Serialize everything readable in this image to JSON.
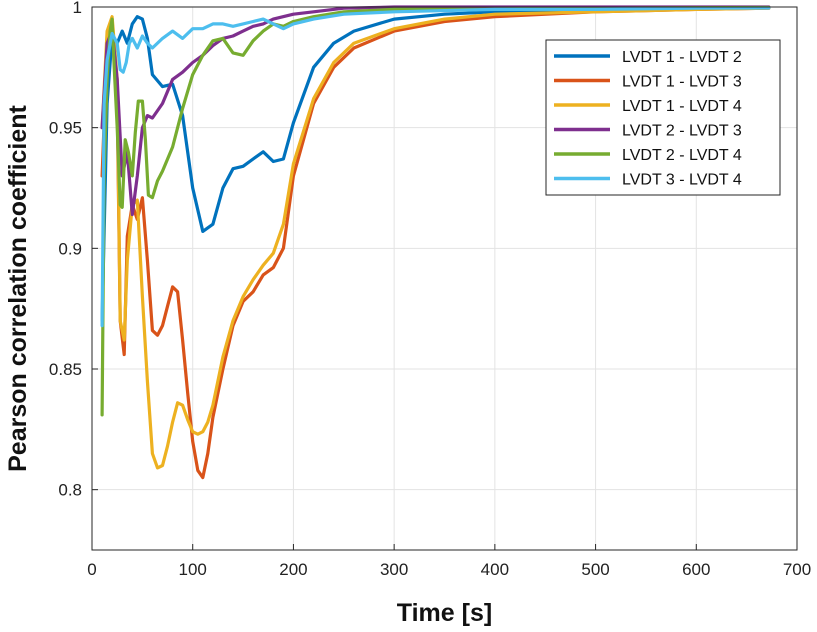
{
  "chart_data": {
    "type": "line",
    "xlabel": "Time [s]",
    "ylabel": "Pearson correlation coefficient",
    "xlim": [
      0,
      700
    ],
    "ylim": [
      0.775,
      1.0
    ],
    "xticks": [
      0,
      100,
      200,
      300,
      400,
      500,
      600,
      700
    ],
    "yticks": [
      0.8,
      0.85,
      0.9,
      0.95,
      1
    ],
    "ytick_labels": [
      "0.8",
      "0.85",
      "0.9",
      "0.95",
      "1"
    ],
    "grid": true,
    "legend_position": "top-right",
    "series": [
      {
        "name": "LVDT 1 - LVDT 2",
        "color": "#0072BD",
        "x": [
          10,
          15,
          20,
          25,
          30,
          35,
          40,
          45,
          50,
          55,
          60,
          70,
          80,
          90,
          100,
          110,
          120,
          130,
          140,
          150,
          160,
          170,
          180,
          190,
          200,
          220,
          240,
          260,
          300,
          350,
          400,
          500,
          600,
          672
        ],
        "y": [
          0.87,
          0.96,
          0.988,
          0.985,
          0.99,
          0.985,
          0.993,
          0.996,
          0.995,
          0.987,
          0.972,
          0.967,
          0.968,
          0.955,
          0.925,
          0.907,
          0.91,
          0.925,
          0.933,
          0.934,
          0.937,
          0.94,
          0.936,
          0.937,
          0.952,
          0.975,
          0.985,
          0.99,
          0.995,
          0.997,
          0.998,
          0.999,
          0.9995,
          0.9997
        ]
      },
      {
        "name": "LVDT 1 - LVDT 3",
        "color": "#D95319",
        "x": [
          10,
          15,
          20,
          25,
          28,
          32,
          35,
          40,
          45,
          50,
          55,
          60,
          65,
          70,
          75,
          80,
          85,
          90,
          95,
          100,
          105,
          110,
          115,
          120,
          130,
          140,
          150,
          160,
          170,
          180,
          190,
          200,
          220,
          240,
          260,
          300,
          350,
          400,
          500,
          600,
          672
        ],
        "y": [
          0.93,
          0.985,
          0.995,
          0.96,
          0.87,
          0.856,
          0.905,
          0.918,
          0.912,
          0.921,
          0.895,
          0.866,
          0.864,
          0.868,
          0.876,
          0.884,
          0.882,
          0.862,
          0.84,
          0.82,
          0.808,
          0.805,
          0.815,
          0.83,
          0.85,
          0.868,
          0.878,
          0.882,
          0.889,
          0.892,
          0.9,
          0.93,
          0.96,
          0.975,
          0.983,
          0.99,
          0.994,
          0.996,
          0.998,
          0.999,
          0.9995
        ]
      },
      {
        "name": "LVDT 1 - LVDT 4",
        "color": "#EDB120",
        "x": [
          10,
          15,
          20,
          25,
          28,
          32,
          35,
          40,
          45,
          50,
          55,
          60,
          65,
          70,
          75,
          80,
          85,
          90,
          95,
          100,
          105,
          110,
          115,
          120,
          130,
          140,
          150,
          160,
          170,
          180,
          190,
          200,
          220,
          240,
          260,
          300,
          350,
          400,
          500,
          600,
          672
        ],
        "y": [
          0.95,
          0.99,
          0.996,
          0.97,
          0.87,
          0.862,
          0.895,
          0.918,
          0.92,
          0.88,
          0.845,
          0.815,
          0.809,
          0.81,
          0.818,
          0.828,
          0.836,
          0.835,
          0.829,
          0.824,
          0.823,
          0.824,
          0.828,
          0.835,
          0.855,
          0.87,
          0.88,
          0.887,
          0.893,
          0.898,
          0.91,
          0.935,
          0.962,
          0.977,
          0.985,
          0.991,
          0.995,
          0.997,
          0.998,
          0.999,
          0.9995
        ]
      },
      {
        "name": "LVDT 2 - LVDT 3",
        "color": "#7E2F8E",
        "x": [
          10,
          15,
          20,
          25,
          30,
          35,
          40,
          45,
          50,
          55,
          60,
          70,
          80,
          90,
          100,
          110,
          120,
          130,
          140,
          150,
          160,
          170,
          180,
          200,
          220,
          250,
          300,
          400,
          500,
          600,
          672
        ],
        "y": [
          0.95,
          0.985,
          0.99,
          0.97,
          0.93,
          0.94,
          0.914,
          0.93,
          0.95,
          0.955,
          0.954,
          0.96,
          0.97,
          0.973,
          0.977,
          0.98,
          0.984,
          0.987,
          0.988,
          0.99,
          0.992,
          0.993,
          0.995,
          0.997,
          0.998,
          0.9995,
          1.0,
          1.0,
          1.0,
          1.0,
          1.0
        ]
      },
      {
        "name": "LVDT 2 - LVDT 4",
        "color": "#77AC30",
        "x": [
          10,
          12,
          15,
          18,
          20,
          22,
          25,
          28,
          30,
          33,
          36,
          40,
          43,
          46,
          50,
          53,
          56,
          60,
          65,
          70,
          80,
          90,
          100,
          110,
          120,
          130,
          140,
          150,
          160,
          170,
          180,
          190,
          200,
          220,
          250,
          300,
          400,
          500,
          600,
          672
        ],
        "y": [
          0.831,
          0.93,
          0.97,
          0.99,
          0.995,
          0.975,
          0.95,
          0.918,
          0.917,
          0.945,
          0.94,
          0.93,
          0.948,
          0.961,
          0.961,
          0.945,
          0.922,
          0.921,
          0.928,
          0.932,
          0.942,
          0.958,
          0.972,
          0.98,
          0.986,
          0.987,
          0.981,
          0.98,
          0.986,
          0.99,
          0.993,
          0.992,
          0.994,
          0.996,
          0.998,
          0.999,
          0.999,
          0.9995,
          0.9997,
          0.9998
        ]
      },
      {
        "name": "LVDT 3 - LVDT 4",
        "color": "#4DBEEE",
        "x": [
          10,
          12,
          15,
          20,
          25,
          28,
          31,
          34,
          37,
          40,
          45,
          50,
          55,
          60,
          70,
          80,
          90,
          100,
          110,
          120,
          130,
          140,
          150,
          160,
          170,
          180,
          190,
          200,
          220,
          250,
          300,
          400,
          500,
          600,
          672
        ],
        "y": [
          0.868,
          0.96,
          0.978,
          0.989,
          0.985,
          0.974,
          0.973,
          0.977,
          0.985,
          0.987,
          0.983,
          0.988,
          0.985,
          0.983,
          0.987,
          0.99,
          0.987,
          0.991,
          0.991,
          0.993,
          0.993,
          0.992,
          0.993,
          0.994,
          0.995,
          0.993,
          0.991,
          0.993,
          0.995,
          0.997,
          0.998,
          0.999,
          0.999,
          0.9995,
          0.9996
        ]
      }
    ]
  }
}
